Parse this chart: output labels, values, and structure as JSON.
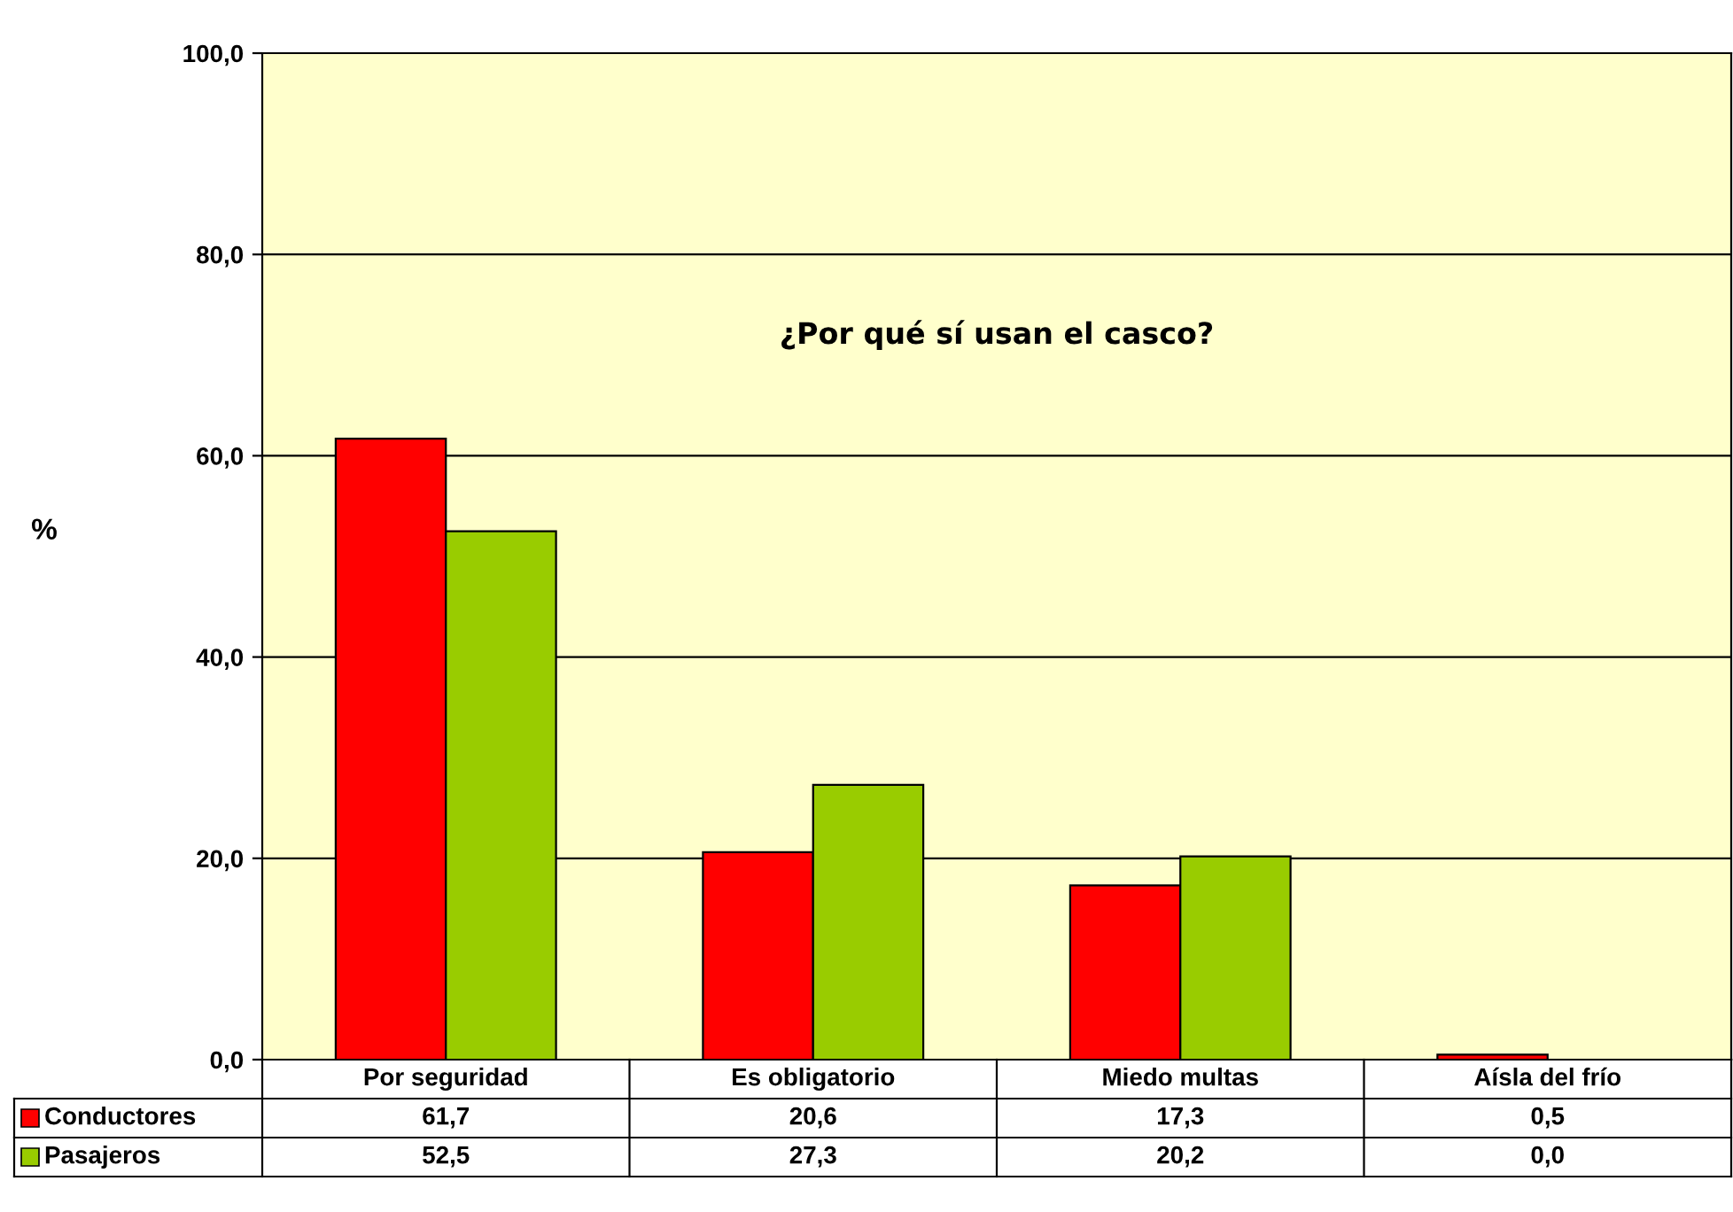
{
  "chart_data": {
    "type": "bar",
    "title": "¿Por qué sí usan el casco?",
    "ylabel": "%",
    "categories": [
      "Por seguridad",
      "Es obligatorio",
      "Miedo multas",
      "Aísla del frío"
    ],
    "series": [
      {
        "name": "Conductores",
        "color": "#ff0000",
        "values": [
          61.7,
          20.6,
          17.3,
          0.5
        ],
        "value_labels": [
          "61,7",
          "20,6",
          "17,3",
          "0,5"
        ]
      },
      {
        "name": "Pasajeros",
        "color": "#99cc00",
        "values": [
          52.5,
          27.3,
          20.2,
          0.0
        ],
        "value_labels": [
          "52,5",
          "27,3",
          "20,2",
          "0,0"
        ]
      }
    ],
    "ylim": [
      0,
      100
    ],
    "yticks": [
      {
        "value": 0,
        "label": "0,0"
      },
      {
        "value": 20,
        "label": "20,0"
      },
      {
        "value": 40,
        "label": "40,0"
      },
      {
        "value": 60,
        "label": "60,0"
      },
      {
        "value": 80,
        "label": "80,0"
      },
      {
        "value": 100,
        "label": "100,0"
      }
    ],
    "grid": "y",
    "legend": "bottom"
  }
}
